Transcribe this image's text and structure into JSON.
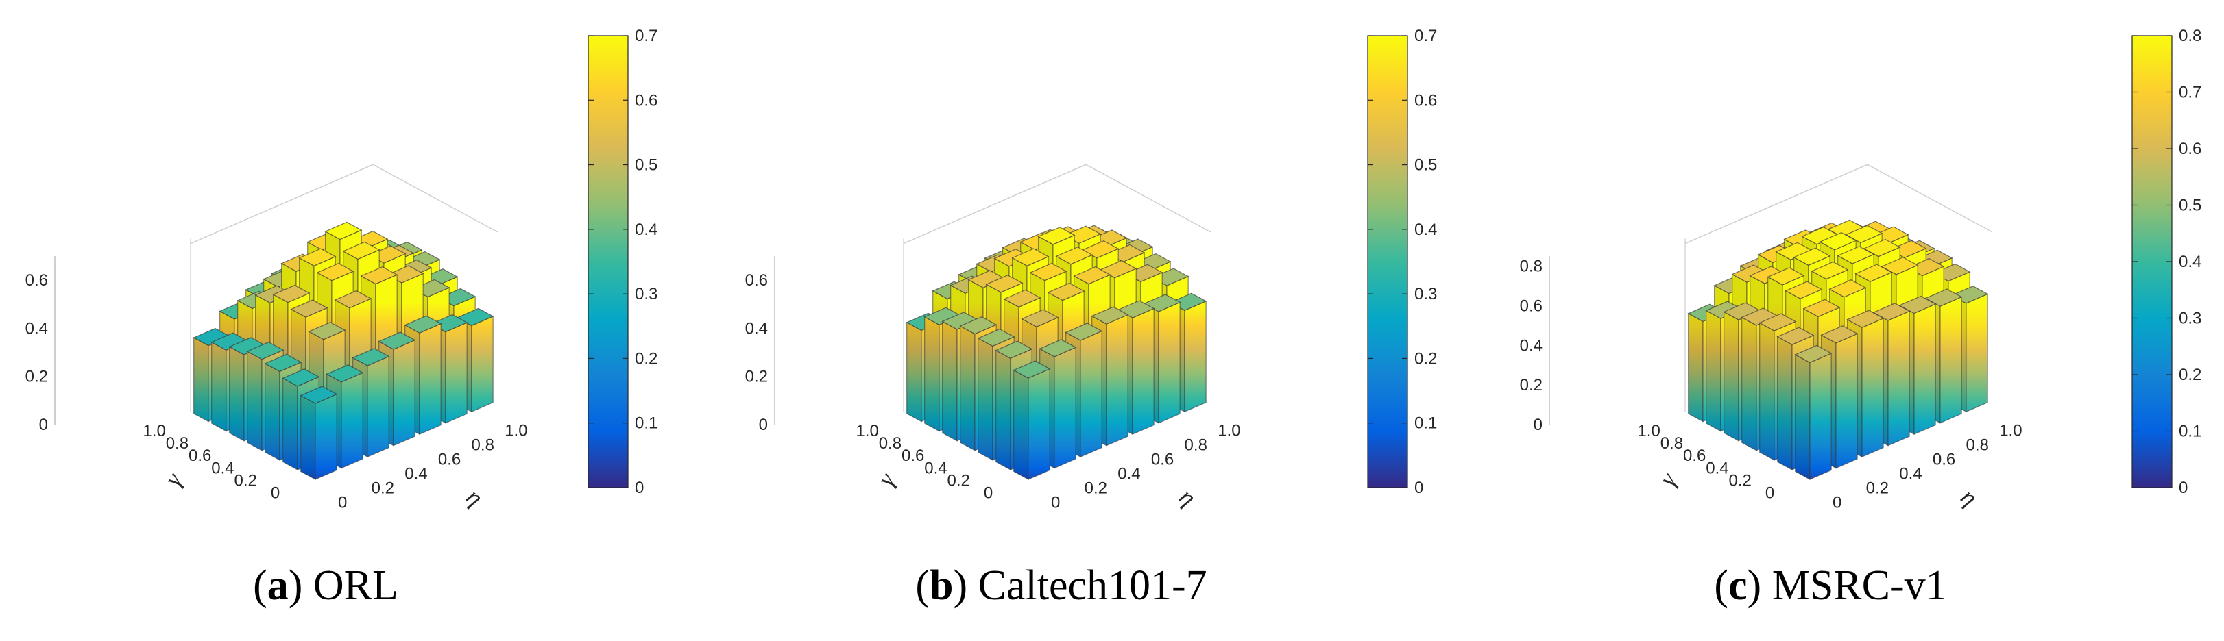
{
  "chart_data": [
    {
      "type": "bar3d",
      "caption_label": "a",
      "caption_name": "ORL",
      "xlabel": "γ",
      "ylabel": "η",
      "x_ticks": [
        "0",
        "0.2",
        "0.4",
        "0.6",
        "0.8",
        "1.0"
      ],
      "y_ticks": [
        "0",
        "0.2",
        "0.4",
        "0.6",
        "0.8",
        "1.0"
      ],
      "z_ticks": [
        "0",
        "0.2",
        "0.4",
        "0.6"
      ],
      "zlim": [
        0,
        0.7
      ],
      "colorbar_ticks": [
        "0",
        "0.1",
        "0.2",
        "0.3",
        "0.4",
        "0.5",
        "0.6",
        "0.7"
      ],
      "colorbar_range": [
        0,
        0.7
      ],
      "values": [
        [
          0.3,
          0.34,
          0.36,
          0.38,
          0.4,
          0.36,
          0.34
        ],
        [
          0.33,
          0.47,
          0.55,
          0.6,
          0.56,
          0.46,
          0.38
        ],
        [
          0.35,
          0.52,
          0.62,
          0.66,
          0.6,
          0.5,
          0.42
        ],
        [
          0.36,
          0.54,
          0.64,
          0.7,
          0.62,
          0.52,
          0.45
        ],
        [
          0.34,
          0.5,
          0.58,
          0.62,
          0.56,
          0.5,
          0.45
        ],
        [
          0.32,
          0.44,
          0.48,
          0.5,
          0.48,
          0.46,
          0.42
        ],
        [
          0.3,
          0.36,
          0.4,
          0.42,
          0.4,
          0.38,
          0.36
        ]
      ]
    },
    {
      "type": "bar3d",
      "caption_label": "b",
      "caption_name": "Caltech101-7",
      "xlabel": "γ",
      "ylabel": "η",
      "x_ticks": [
        "0",
        "0.2",
        "0.4",
        "0.6",
        "0.8",
        "1.0"
      ],
      "y_ticks": [
        "0",
        "0.2",
        "0.4",
        "0.6",
        "0.8",
        "1.0"
      ],
      "z_ticks": [
        "0",
        "0.2",
        "0.4",
        "0.6"
      ],
      "zlim": [
        0,
        0.7
      ],
      "colorbar_ticks": [
        "0",
        "0.1",
        "0.2",
        "0.3",
        "0.4",
        "0.5",
        "0.6",
        "0.7"
      ],
      "colorbar_range": [
        0,
        0.7
      ],
      "values": [
        [
          0.4,
          0.44,
          0.46,
          0.48,
          0.46,
          0.44,
          0.4
        ],
        [
          0.44,
          0.52,
          0.58,
          0.6,
          0.58,
          0.52,
          0.46
        ],
        [
          0.45,
          0.56,
          0.62,
          0.64,
          0.62,
          0.56,
          0.48
        ],
        [
          0.46,
          0.58,
          0.64,
          0.68,
          0.64,
          0.58,
          0.5
        ],
        [
          0.44,
          0.56,
          0.6,
          0.62,
          0.6,
          0.56,
          0.48
        ],
        [
          0.42,
          0.5,
          0.54,
          0.56,
          0.55,
          0.5,
          0.46
        ],
        [
          0.36,
          0.44,
          0.46,
          0.48,
          0.48,
          0.46,
          0.42
        ]
      ]
    },
    {
      "type": "bar3d",
      "caption_label": "c",
      "caption_name": "MSRC-v1",
      "xlabel": "γ",
      "ylabel": "η",
      "x_ticks": [
        "0",
        "0.2",
        "0.4",
        "0.6",
        "0.8",
        "1.0"
      ],
      "y_ticks": [
        "0",
        "0.2",
        "0.4",
        "0.6",
        "0.8",
        "1.0"
      ],
      "z_ticks": [
        "0",
        "0.2",
        "0.4",
        "0.6",
        "0.8"
      ],
      "zlim": [
        0,
        0.85
      ],
      "colorbar_ticks": [
        "0",
        "0.1",
        "0.2",
        "0.3",
        "0.4",
        "0.5",
        "0.6",
        "0.7",
        "0.8"
      ],
      "colorbar_range": [
        0,
        0.8
      ],
      "values": [
        [
          0.56,
          0.6,
          0.62,
          0.6,
          0.58,
          0.56,
          0.52
        ],
        [
          0.6,
          0.68,
          0.72,
          0.74,
          0.72,
          0.66,
          0.58
        ],
        [
          0.62,
          0.72,
          0.76,
          0.78,
          0.76,
          0.7,
          0.6
        ],
        [
          0.6,
          0.74,
          0.78,
          0.8,
          0.78,
          0.72,
          0.6
        ],
        [
          0.58,
          0.7,
          0.76,
          0.78,
          0.76,
          0.7,
          0.58
        ],
        [
          0.54,
          0.66,
          0.7,
          0.72,
          0.7,
          0.64,
          0.56
        ],
        [
          0.48,
          0.56,
          0.6,
          0.62,
          0.6,
          0.56,
          0.52
        ]
      ]
    }
  ]
}
